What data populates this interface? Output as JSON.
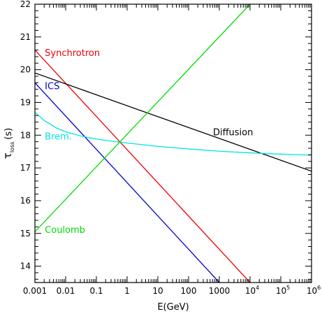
{
  "chart_data": {
    "type": "line",
    "xlabel": "E(GeV)",
    "ylabel_main": "τ",
    "ylabel_sub": "loss",
    "ylabel_unit": "(s)",
    "x_scale": "log",
    "xlim": [
      0.001,
      1000000
    ],
    "ylim": [
      13.5,
      22
    ],
    "grid": false,
    "legend": "inline labels",
    "x_ticks": [
      {
        "value": 0.001,
        "label": "0.001",
        "sup": ""
      },
      {
        "value": 0.01,
        "label": "0.01",
        "sup": ""
      },
      {
        "value": 0.1,
        "label": "0.1",
        "sup": ""
      },
      {
        "value": 1,
        "label": "1",
        "sup": ""
      },
      {
        "value": 10,
        "label": "10",
        "sup": ""
      },
      {
        "value": 100,
        "label": "100",
        "sup": ""
      },
      {
        "value": 1000,
        "label": "1000",
        "sup": ""
      },
      {
        "value": 10000,
        "label": "10",
        "sup": "4"
      },
      {
        "value": 100000,
        "label": "10",
        "sup": "5"
      },
      {
        "value": 1000000,
        "label": "10",
        "sup": "6"
      }
    ],
    "y_ticks": [
      {
        "value": 14,
        "label": "14"
      },
      {
        "value": 15,
        "label": "15"
      },
      {
        "value": 16,
        "label": "16"
      },
      {
        "value": 17,
        "label": "17"
      },
      {
        "value": 18,
        "label": "18"
      },
      {
        "value": 19,
        "label": "19"
      },
      {
        "value": 20,
        "label": "20"
      },
      {
        "value": 21,
        "label": "21"
      },
      {
        "value": 22,
        "label": "22"
      }
    ],
    "series": [
      {
        "name": "Synchrotron",
        "color": "#ee0000",
        "x": [
          0.001,
          10000
        ],
        "y": [
          20.6,
          13.5
        ]
      },
      {
        "name": "ICS",
        "color": "#0000cc",
        "x": [
          0.001,
          1000
        ],
        "y": [
          19.6,
          13.5
        ]
      },
      {
        "name": "Diffusion",
        "color": "#000000",
        "x": [
          0.001,
          1000000
        ],
        "y": [
          19.9,
          16.9
        ]
      },
      {
        "name": "Brem.",
        "color": "#00e5e5",
        "x": [
          0.001,
          0.002,
          0.005,
          0.01,
          0.03,
          0.1,
          0.3,
          1,
          10,
          100,
          1000,
          10000,
          100000,
          1000000
        ],
        "y": [
          18.7,
          18.45,
          18.22,
          18.1,
          17.98,
          17.88,
          17.82,
          17.76,
          17.66,
          17.58,
          17.51,
          17.46,
          17.42,
          17.39
        ]
      },
      {
        "name": "Coulomb",
        "color": "#00dd00",
        "x": [
          0.001,
          10000
        ],
        "y": [
          15.05,
          22
        ]
      }
    ]
  }
}
